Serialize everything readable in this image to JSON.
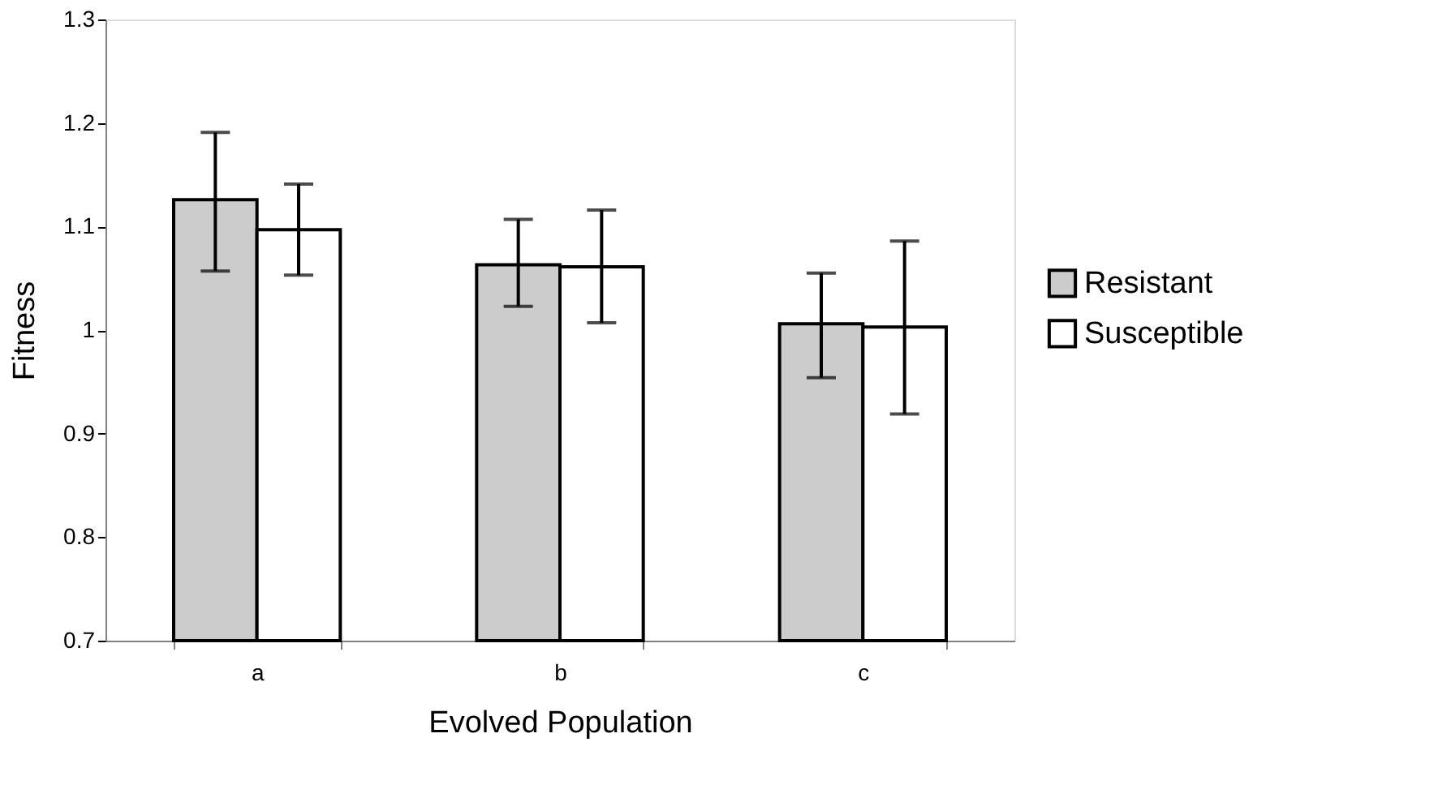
{
  "chart_data": {
    "type": "bar",
    "xlabel": "Evolved Population",
    "ylabel": "Fitness",
    "categories": [
      "a",
      "b",
      "c"
    ],
    "series": [
      {
        "name": "Resistant",
        "color": "#cccccc",
        "values": [
          1.126,
          1.063,
          1.006
        ],
        "errors": [
          [
            1.057,
            1.191
          ],
          [
            1.023,
            1.107
          ],
          [
            0.954,
            1.055
          ]
        ]
      },
      {
        "name": "Susceptible",
        "color": "#ffffff",
        "values": [
          1.097,
          1.061,
          1.003
        ],
        "errors": [
          [
            1.053,
            1.141
          ],
          [
            1.007,
            1.116
          ],
          [
            0.919,
            1.086
          ]
        ]
      }
    ],
    "ylim": [
      0.7,
      1.3
    ],
    "yticks": [
      0.7,
      0.8,
      0.9,
      1,
      1.1,
      1.2,
      1.3
    ],
    "grid": false,
    "legend": "right"
  }
}
